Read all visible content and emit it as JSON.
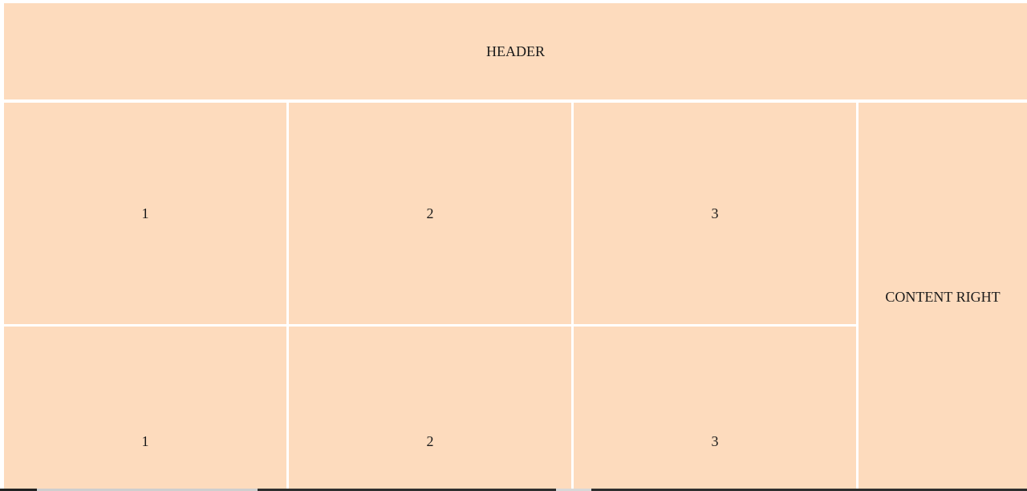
{
  "header": {
    "label": "HEADER"
  },
  "content_right": {
    "label": "CONTENT RIGHT"
  },
  "grid": {
    "rows": [
      {
        "cells": [
          "1",
          "2",
          "3"
        ]
      },
      {
        "cells": [
          "1",
          "2",
          "3"
        ]
      }
    ]
  },
  "colors": {
    "cell_background": "#fddbbd",
    "page_background": "#ffffff",
    "text": "#1a1a1a"
  }
}
